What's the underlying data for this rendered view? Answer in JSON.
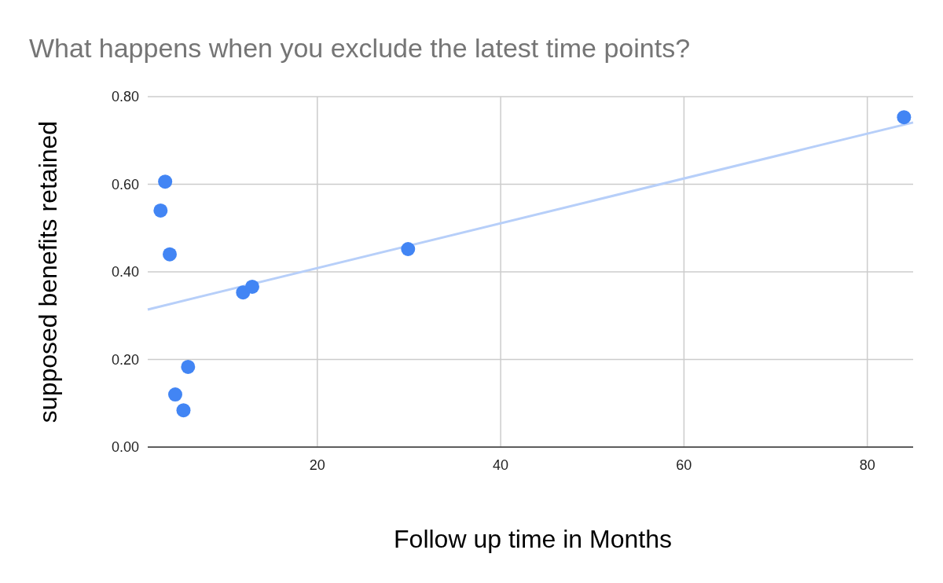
{
  "chart_data": {
    "type": "scatter",
    "title": "What happens when you exclude the latest time points?",
    "xlabel": "Follow up time in Months",
    "ylabel": "supposed benefits retained",
    "xlim": [
      1.5,
      85
    ],
    "xticks": [
      20,
      40,
      60,
      80
    ],
    "ylim": [
      0,
      0.8
    ],
    "yticks": [
      {
        "value": 0,
        "label": "0.00"
      },
      {
        "value": 0.2,
        "label": "0.20"
      },
      {
        "value": 0.4,
        "label": "0.40"
      },
      {
        "value": 0.6,
        "label": "0.60"
      },
      {
        "value": 0.8,
        "label": "0.80"
      }
    ],
    "grid": true,
    "series": [
      {
        "marker": "circle",
        "color": "#4285f4",
        "x": [
          3.4,
          2.9,
          3.9,
          5.9,
          4.5,
          5.4,
          11.9,
          12.9,
          29.9,
          84
        ],
        "values": [
          0.606,
          0.54,
          0.44,
          0.183,
          0.12,
          0.084,
          0.353,
          0.366,
          0.452,
          0.753
        ]
      },
      {
        "type": "line",
        "color": "#b7cff9",
        "x": [
          1.5,
          85
        ],
        "values": [
          0.314,
          0.741
        ]
      }
    ]
  }
}
